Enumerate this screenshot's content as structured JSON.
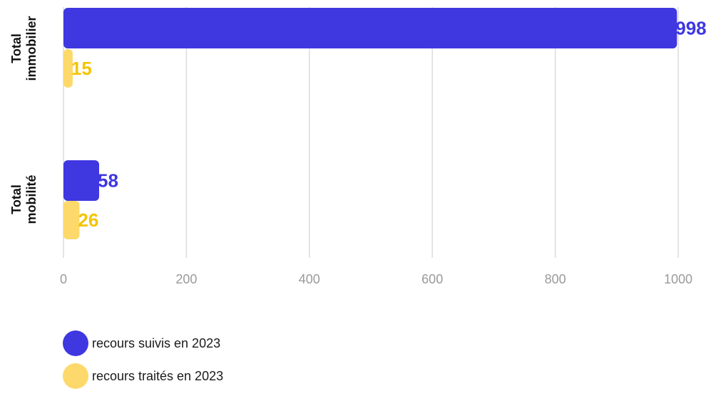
{
  "chart_data": {
    "type": "bar",
    "orientation": "horizontal",
    "categories": [
      "Total immobilier",
      "Total mobilité"
    ],
    "category_label_lines": [
      [
        "Total",
        "immobilier"
      ],
      [
        "Total",
        "mobilité"
      ]
    ],
    "series": [
      {
        "name": "recours suivis en 2023",
        "values": [
          998,
          58
        ],
        "color": "#3f37e0"
      },
      {
        "name": "recours traités en 2023",
        "values": [
          15,
          26
        ],
        "color": "#fdd96b",
        "label_color": "#f5c400"
      }
    ],
    "xlim": [
      0,
      1000
    ],
    "xticks": [
      "0",
      "200",
      "400",
      "600",
      "800",
      "1000"
    ],
    "grid": true,
    "data_labels": true,
    "legend_position": "bottom-left",
    "title": "",
    "xlabel": "",
    "ylabel": ""
  },
  "legend": {
    "items": [
      {
        "label": "recours suivis en 2023",
        "color": "#3f37e0"
      },
      {
        "label": "recours traités en 2023",
        "color": "#fdd96b"
      }
    ]
  }
}
